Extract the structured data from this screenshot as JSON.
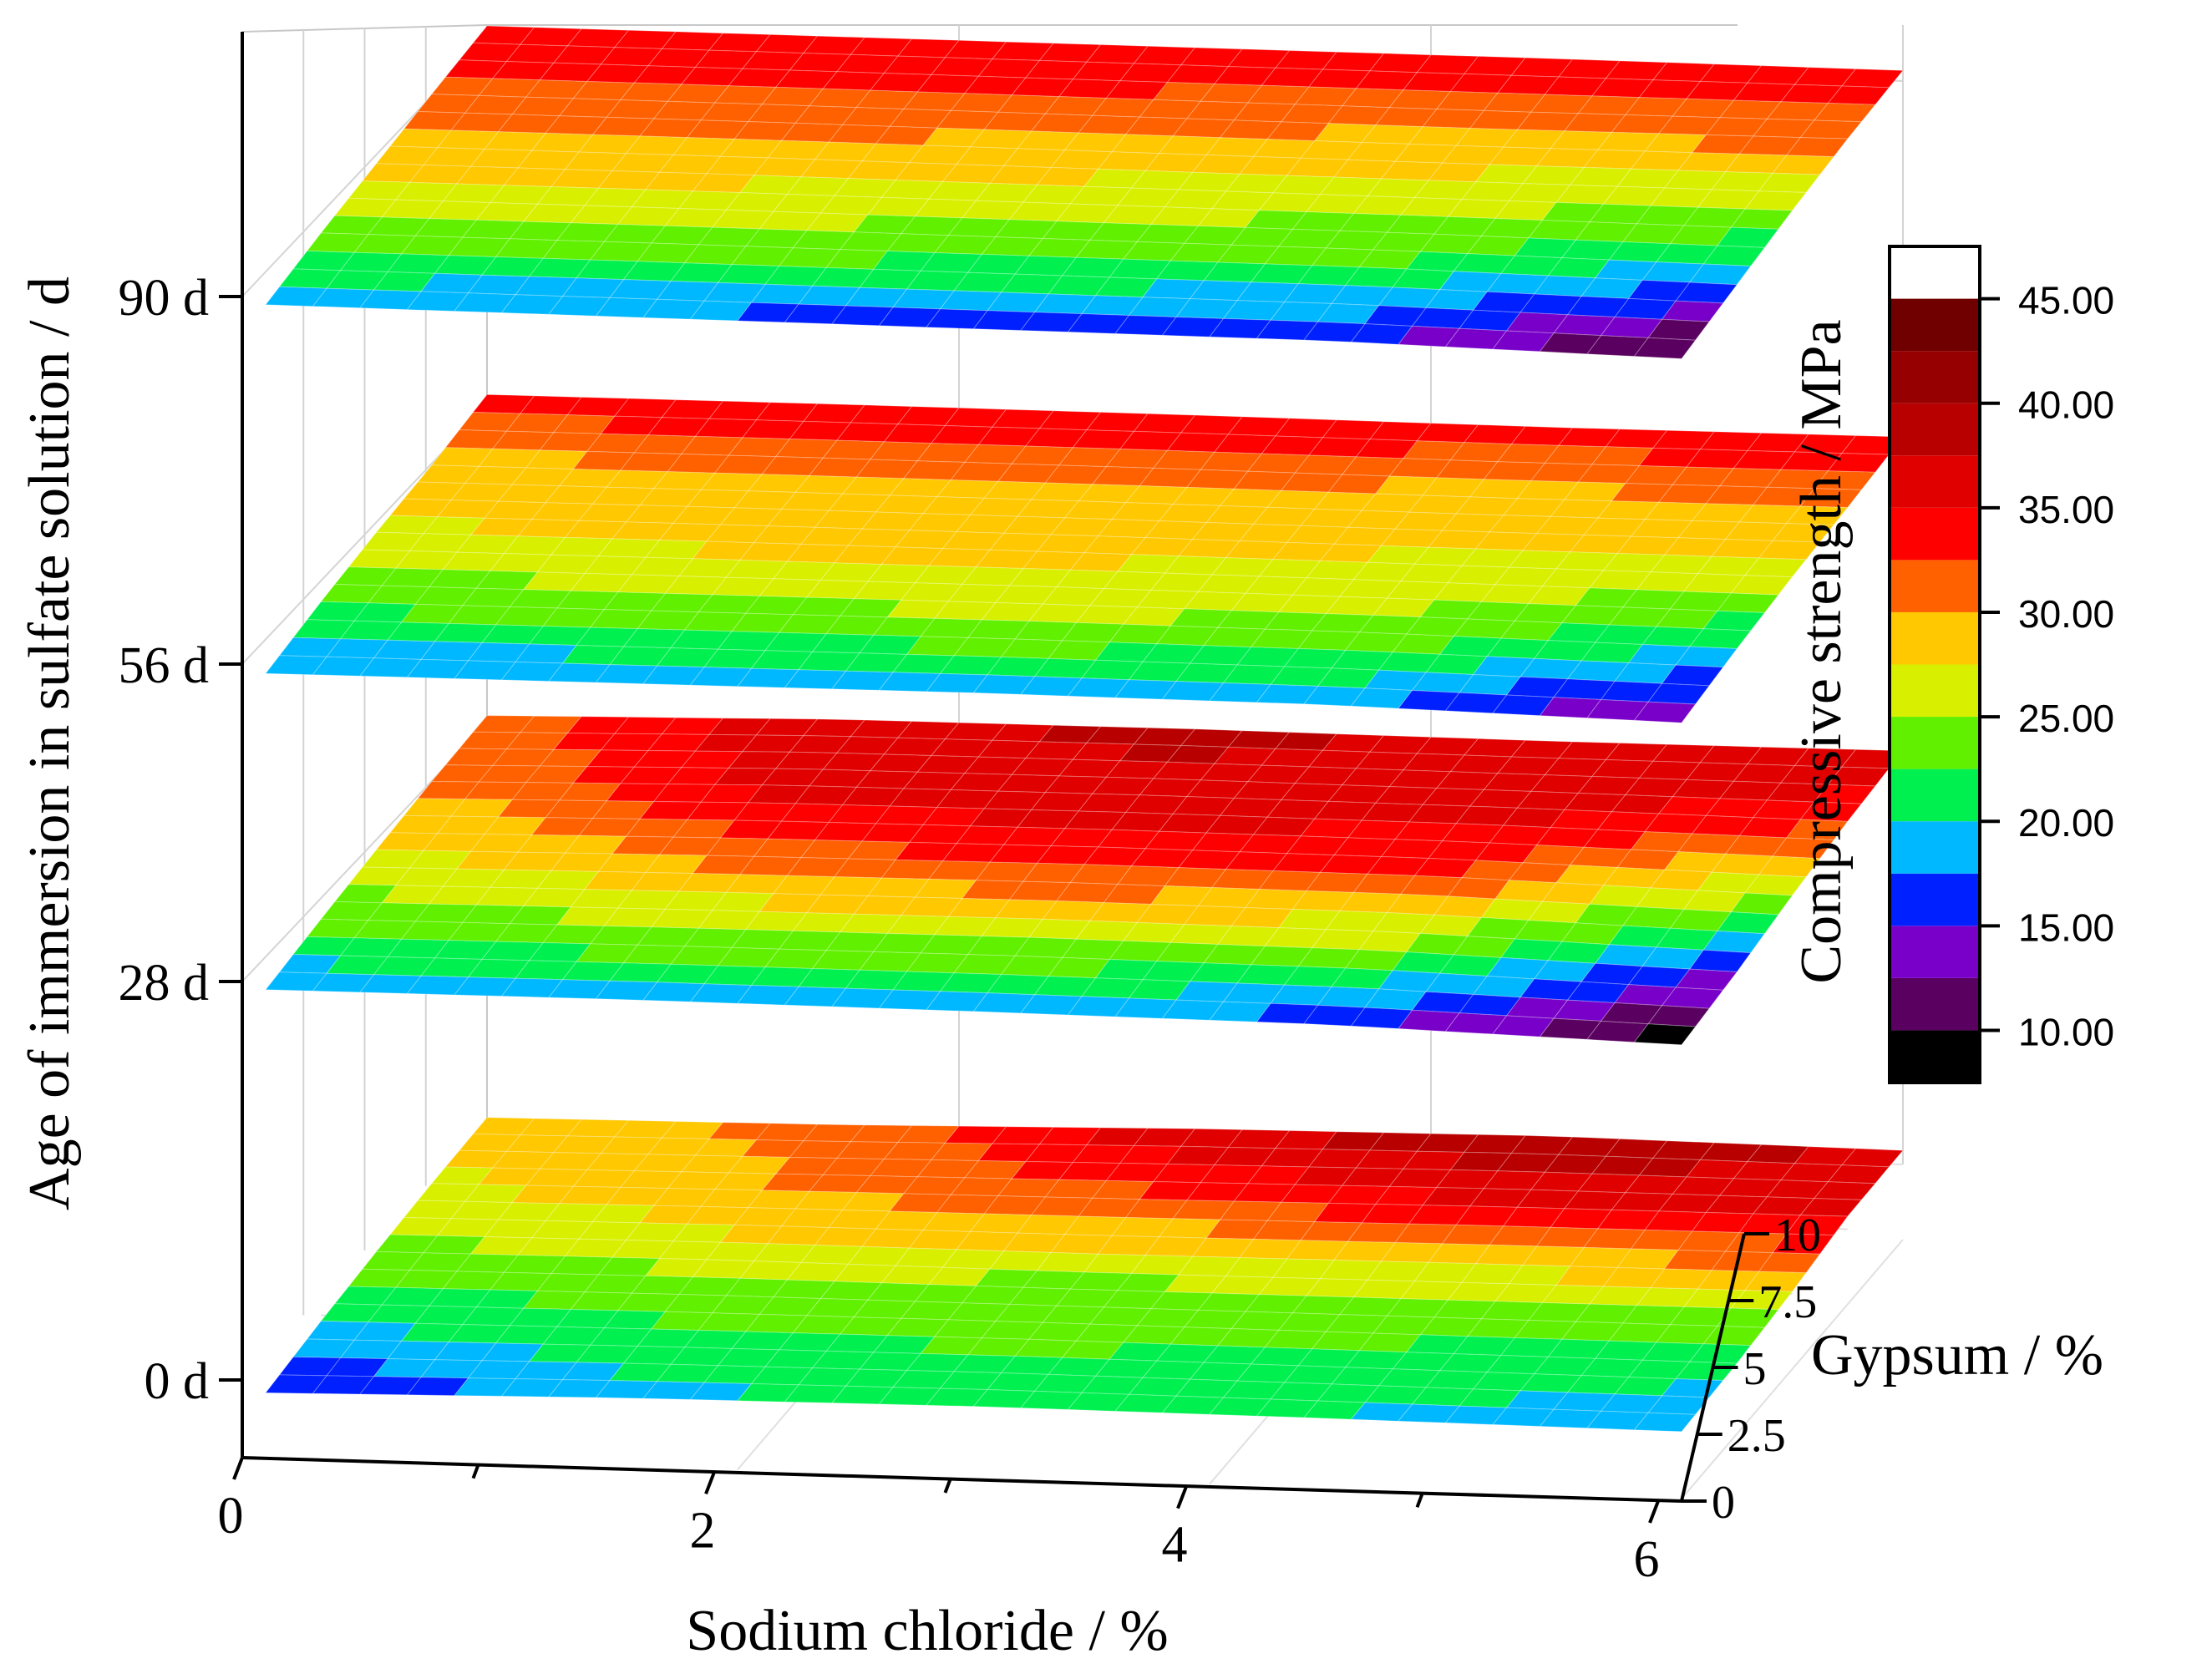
{
  "chart_data": {
    "type": "surface3d",
    "xlabel": "Sodium chloride / %",
    "ylabel": "Age of immersion in sulfate solution / d",
    "zlabel": "Gypsum / %",
    "colorbar_label": "Compressive strength / MPa",
    "x_ticks": [
      "0",
      "2",
      "4",
      "6"
    ],
    "x_range": [
      0,
      6
    ],
    "gypsum_ticks": [
      "0",
      "2.5",
      "5",
      "7.5",
      "10"
    ],
    "gypsum_range": [
      0,
      10
    ],
    "age_ticks": [
      "0 d",
      "28 d",
      "56 d",
      "90 d"
    ],
    "colorbar_ticks": [
      "10.00",
      "15.00",
      "20.00",
      "25.00",
      "30.00",
      "35.00",
      "40.00",
      "45.00"
    ],
    "colorbar_range": [
      7.5,
      47.5
    ],
    "colorbar_levels": [
      {
        "min": 7.5,
        "max": 10,
        "color": "#000000"
      },
      {
        "min": 10,
        "max": 12.5,
        "color": "#5a0060"
      },
      {
        "min": 12.5,
        "max": 15,
        "color": "#7800c8"
      },
      {
        "min": 15,
        "max": 17.5,
        "color": "#0020ff"
      },
      {
        "min": 17.5,
        "max": 20,
        "color": "#00b8ff"
      },
      {
        "min": 20,
        "max": 22.5,
        "color": "#00f050"
      },
      {
        "min": 22.5,
        "max": 25,
        "color": "#60f000"
      },
      {
        "min": 25,
        "max": 27.5,
        "color": "#d8f000"
      },
      {
        "min": 27.5,
        "max": 30,
        "color": "#ffc800"
      },
      {
        "min": 30,
        "max": 32.5,
        "color": "#ff6000"
      },
      {
        "min": 32.5,
        "max": 35,
        "color": "#ff0000"
      },
      {
        "min": 35,
        "max": 37.5,
        "color": "#e00000"
      },
      {
        "min": 37.5,
        "max": 40,
        "color": "#b80000"
      },
      {
        "min": 40,
        "max": 42.5,
        "color": "#960000"
      },
      {
        "min": 42.5,
        "max": 45,
        "color": "#700000"
      },
      {
        "min": 45,
        "max": 47.5,
        "color": "#ffffff"
      }
    ],
    "surfaces": [
      {
        "age": "0 d",
        "ncl": [
          0,
          1.5,
          3,
          4.5,
          6
        ],
        "gypsum": [
          0,
          2.5,
          5,
          7.5,
          10
        ],
        "strength": [
          [
            14,
            20,
            24,
            27,
            28
          ],
          [
            19,
            22,
            26,
            30,
            31
          ],
          [
            21,
            23,
            25,
            32,
            37
          ],
          [
            20,
            22,
            26,
            35,
            40
          ],
          [
            18,
            21,
            27,
            36,
            37
          ]
        ]
      },
      {
        "age": "28 d",
        "ncl": [
          0,
          1.5,
          3,
          4.5,
          6
        ],
        "gypsum": [
          0,
          2.5,
          5,
          7.5,
          10
        ],
        "strength": [
          [
            18,
            23,
            27,
            30,
            31
          ],
          [
            19,
            25,
            31,
            36,
            37
          ],
          [
            18,
            26,
            33,
            37,
            38
          ],
          [
            16,
            24,
            32,
            36,
            37
          ],
          [
            8,
            15,
            25,
            33,
            38
          ]
        ]
      },
      {
        "age": "56 d",
        "ncl": [
          0,
          1.5,
          3,
          4.5,
          6
        ],
        "gypsum": [
          0,
          2.5,
          5,
          7.5,
          10
        ],
        "strength": [
          [
            17,
            23,
            27,
            29,
            34
          ],
          [
            18,
            24,
            28,
            30,
            35
          ],
          [
            19,
            25,
            28,
            30,
            35
          ],
          [
            18,
            24,
            27,
            29,
            34
          ],
          [
            12,
            20,
            26,
            30,
            35
          ]
        ]
      },
      {
        "age": "90 d",
        "ncl": [
          0,
          1.5,
          3,
          4.5,
          6
        ],
        "gypsum": [
          0,
          2.5,
          5,
          7.5,
          10
        ],
        "strength": [
          [
            18,
            24,
            28,
            32,
            35
          ],
          [
            17,
            24,
            28,
            32,
            35
          ],
          [
            16,
            23,
            27,
            31,
            35
          ],
          [
            15,
            22,
            26,
            30,
            35
          ],
          [
            9,
            17,
            25,
            31,
            34
          ]
        ]
      }
    ]
  }
}
